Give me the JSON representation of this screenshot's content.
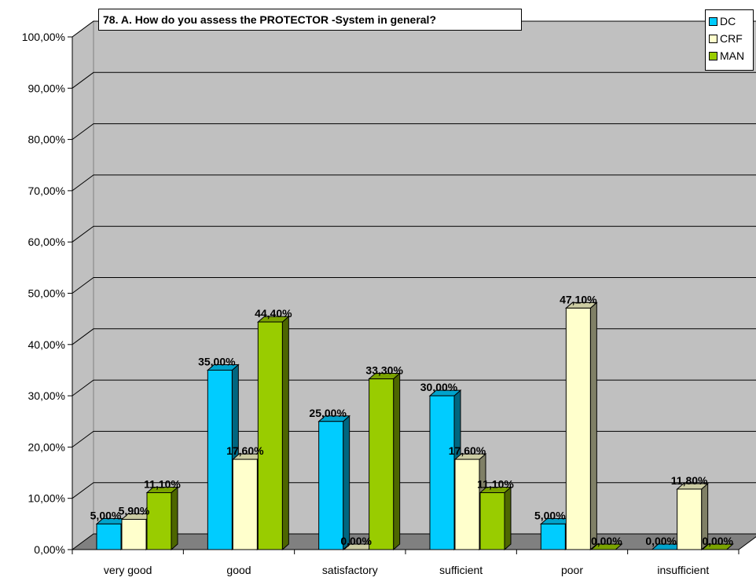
{
  "chart_data": {
    "type": "bar",
    "title": "78. A. How do you assess the PROTECTOR -System in general?",
    "categories": [
      "very good",
      "good",
      "satisfactory",
      "sufficient",
      "poor",
      "insufficient"
    ],
    "series": [
      {
        "name": "DC",
        "color": "#00ccff",
        "values": [
          5.0,
          35.0,
          25.0,
          30.0,
          5.0,
          0.0
        ],
        "labels": [
          "5,00%",
          "35,00%",
          "25,00%",
          "30,00%",
          "5,00%",
          "0,00%"
        ]
      },
      {
        "name": "CRF",
        "color": "#ffffcc",
        "values": [
          5.9,
          17.6,
          0.0,
          17.6,
          47.1,
          11.8
        ],
        "labels": [
          "5,90%",
          "17,60%",
          "0,00%",
          "17,60%",
          "47,10%",
          "11,80%"
        ]
      },
      {
        "name": "MAN",
        "color": "#99cc00",
        "values": [
          11.1,
          44.4,
          33.3,
          11.1,
          0.0,
          0.0
        ],
        "labels": [
          "11,10%",
          "44,40%",
          "33,30%",
          "11,10%",
          "0,00%",
          "0,00%"
        ]
      }
    ],
    "y_ticks": [
      0,
      10,
      20,
      30,
      40,
      50,
      60,
      70,
      80,
      90,
      100
    ],
    "y_tick_labels": [
      "0,00%",
      "10,00%",
      "20,00%",
      "30,00%",
      "40,00%",
      "50,00%",
      "60,00%",
      "70,00%",
      "80,00%",
      "90,00%",
      "100,00%"
    ],
    "ylim": [
      0,
      100
    ],
    "xlabel": "",
    "ylabel": "",
    "grid": true,
    "legend_position": "top-right",
    "wall_color": "#c0c0c0",
    "floor_color": "#808080"
  }
}
